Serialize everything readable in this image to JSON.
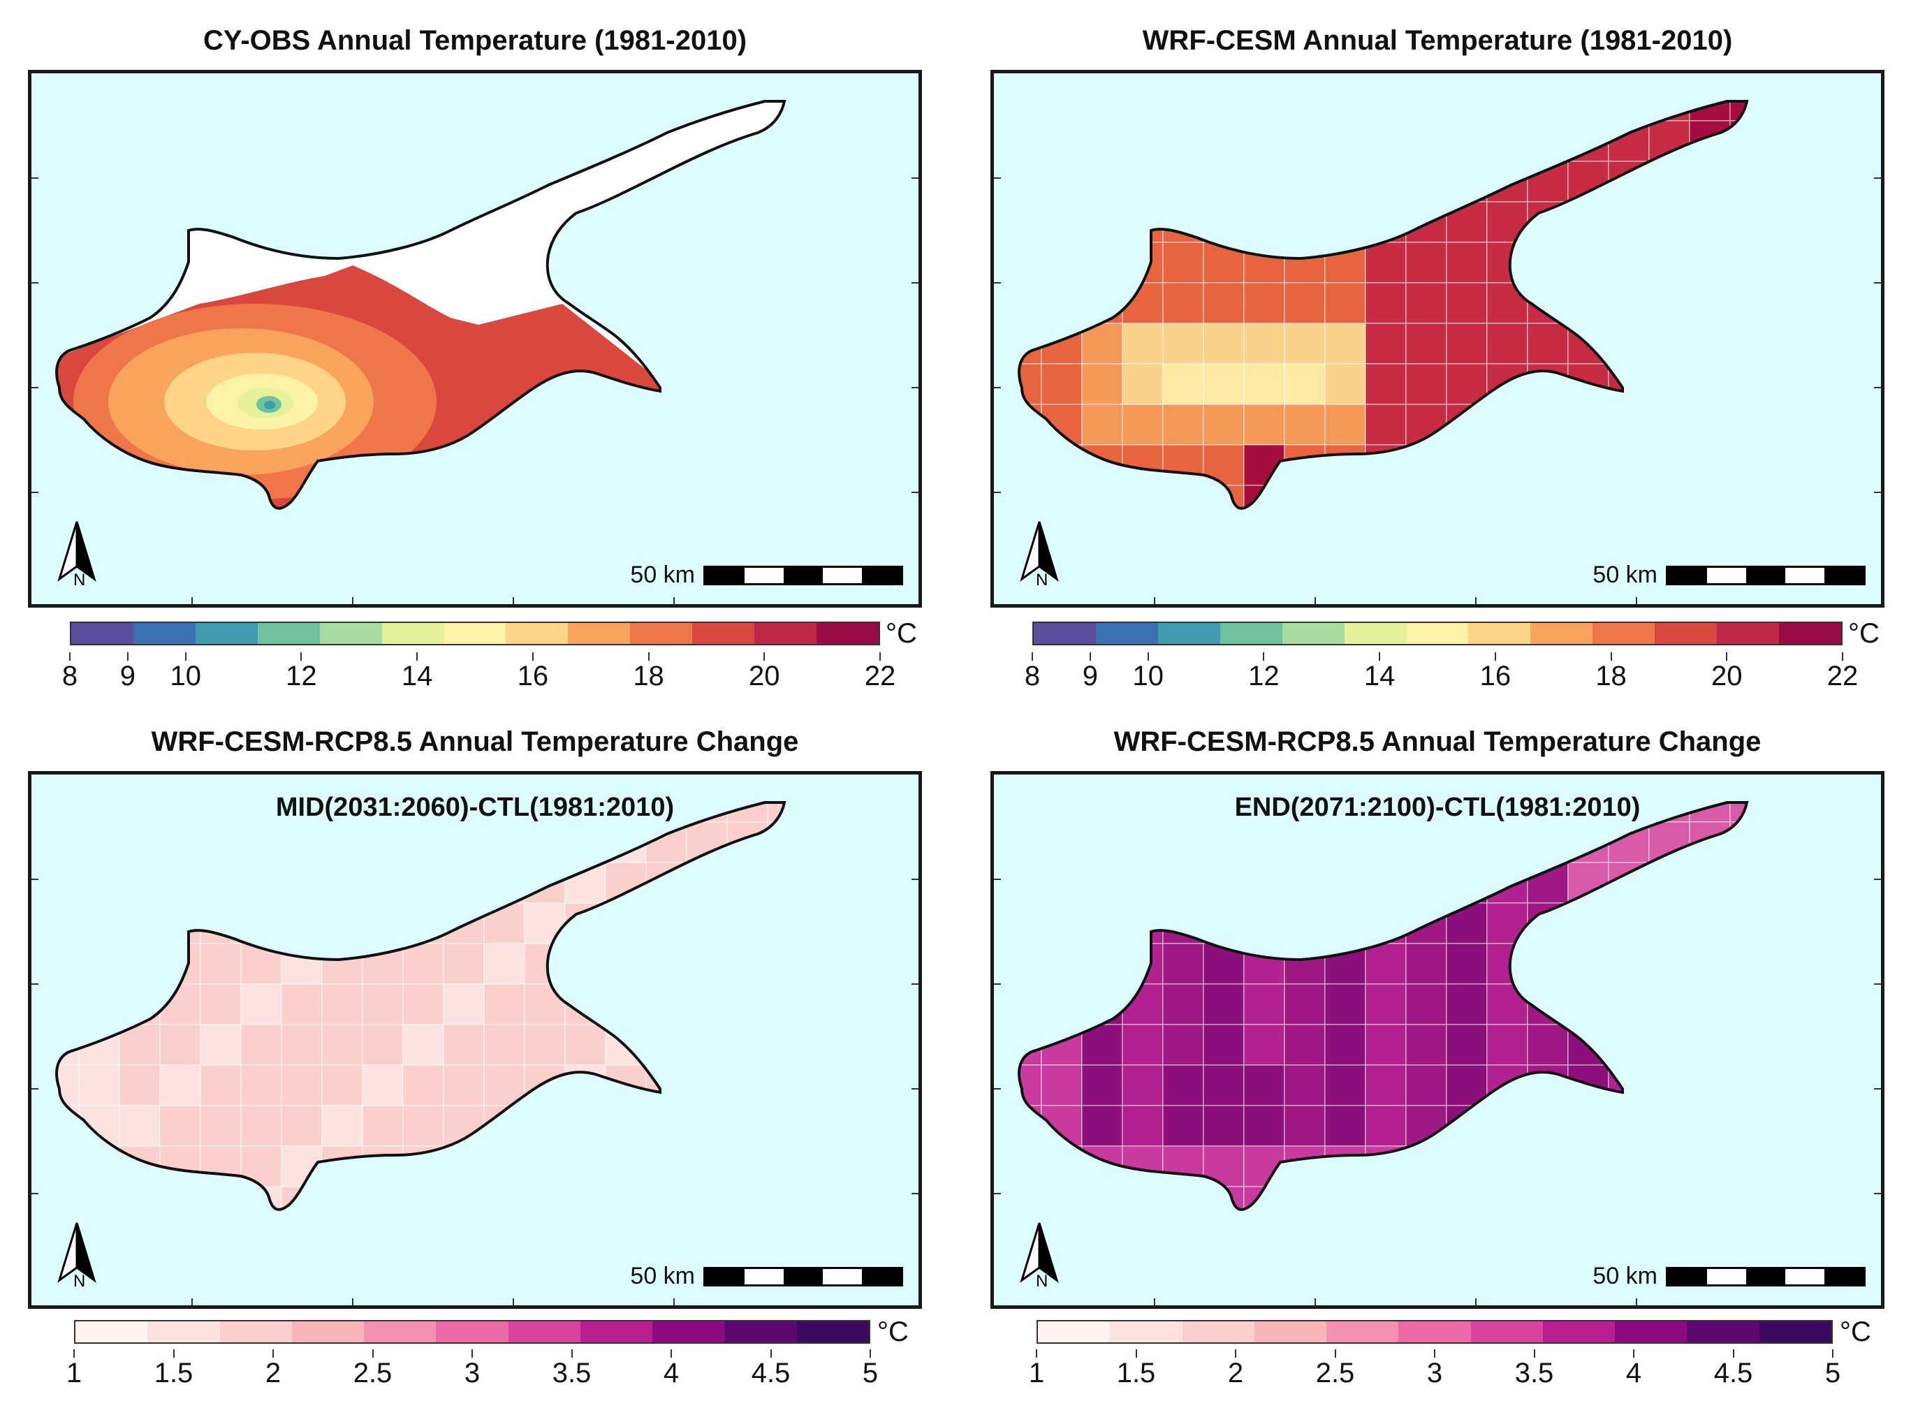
{
  "panels": [
    {
      "title": "CY-OBS Annual Temperature (1981-2010)",
      "subtitle": "",
      "scale_label": "50 km",
      "north_label": "N",
      "fill_style": "obs",
      "colorbar": {
        "unit": "°C",
        "ticks": [
          "8",
          "9",
          "10",
          "12",
          "14",
          "16",
          "18",
          "20",
          "22"
        ],
        "colors": [
          "#5b4d9c",
          "#3a72b4",
          "#3f9bad",
          "#6ec39e",
          "#a7dba0",
          "#e6f29a",
          "#fdf3a7",
          "#fdd488",
          "#f9a45c",
          "#ee7648",
          "#d9473f",
          "#bf2846",
          "#970c44"
        ]
      }
    },
    {
      "title": "WRF-CESM Annual Temperature (1981-2010)",
      "subtitle": "",
      "scale_label": "50 km",
      "north_label": "N",
      "fill_style": "wrf",
      "colorbar": {
        "unit": "°C",
        "ticks": [
          "8",
          "9",
          "10",
          "12",
          "14",
          "16",
          "18",
          "20",
          "22"
        ],
        "colors": [
          "#5b4d9c",
          "#3a72b4",
          "#3f9bad",
          "#6ec39e",
          "#a7dba0",
          "#e6f29a",
          "#fdf3a7",
          "#fdd488",
          "#f9a45c",
          "#ee7648",
          "#d9473f",
          "#bf2846",
          "#970c44"
        ]
      }
    },
    {
      "title": "WRF-CESM-RCP8.5 Annual Temperature Change",
      "subtitle": "MID(2031:2060)-CTL(1981:2010)",
      "scale_label": "50 km",
      "north_label": "N",
      "fill_style": "mid",
      "colorbar": {
        "unit": "°C",
        "ticks": [
          "1",
          "1.5",
          "2",
          "2.5",
          "3",
          "3.5",
          "4",
          "4.5",
          "5"
        ],
        "colors": [
          "#fff3f0",
          "#fde3e0",
          "#fbcfcd",
          "#f8b6bb",
          "#f591b0",
          "#ec6aa6",
          "#d9439e",
          "#b91f91",
          "#8f0a80",
          "#5d0872",
          "#3b0a5e"
        ]
      }
    },
    {
      "title": "WRF-CESM-RCP8.5 Annual Temperature Change",
      "subtitle": "END(2071:2100)-CTL(1981:2010)",
      "scale_label": "50 km",
      "north_label": "N",
      "fill_style": "end",
      "colorbar": {
        "unit": "°C",
        "ticks": [
          "1",
          "1.5",
          "2",
          "2.5",
          "3",
          "3.5",
          "4",
          "4.5",
          "5"
        ],
        "colors": [
          "#fff3f0",
          "#fde3e0",
          "#fbcfcd",
          "#f8b6bb",
          "#f591b0",
          "#ec6aa6",
          "#d9439e",
          "#b91f91",
          "#8f0a80",
          "#5d0872",
          "#3b0a5e"
        ]
      }
    }
  ]
}
